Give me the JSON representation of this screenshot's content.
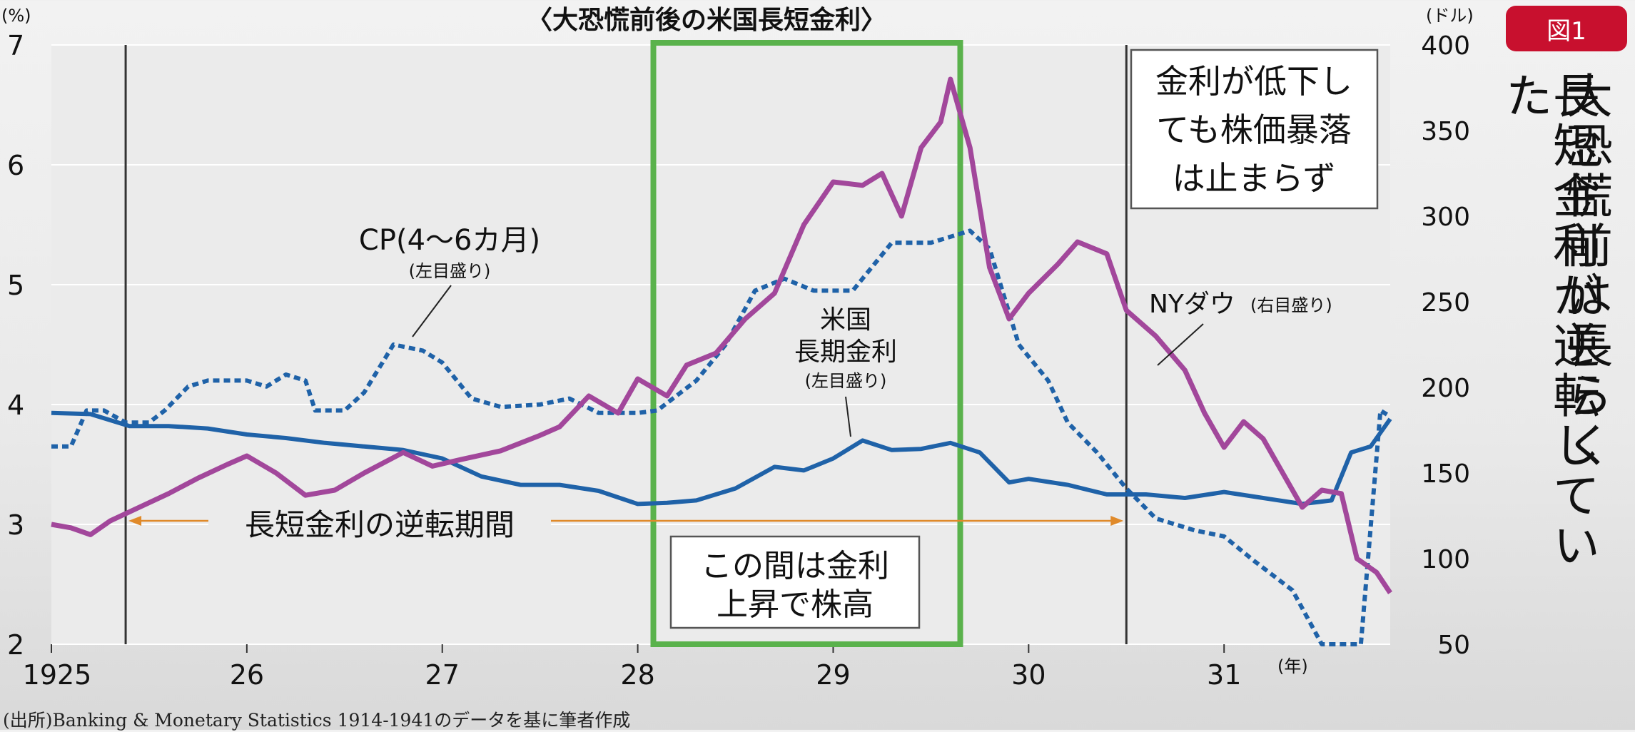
{
  "badge": "図1",
  "side_title": [
    "大恐慌前は長らく",
    "長短金利が逆転していた"
  ],
  "source": "(出所)Banking & Monetary Statistics 1914-1941のデータを基に筆者作成",
  "chart_data": {
    "type": "line",
    "title": "〈大恐慌前後の米国長短金利〉",
    "left_axis_unit": "(%)",
    "right_axis_unit": "(ドル)",
    "x_unit": "(年)",
    "x_tick_labels": [
      "1925",
      "26",
      "27",
      "28",
      "29",
      "30",
      "31"
    ],
    "x_ticks": [
      1925,
      1926,
      1927,
      1928,
      1929,
      1930,
      1931
    ],
    "xlim": [
      1925,
      1931.85
    ],
    "ylim_left": [
      2,
      7
    ],
    "ylim_right": [
      50,
      400
    ],
    "y_ticks_left": [
      "2",
      "3",
      "4",
      "5",
      "6",
      "7"
    ],
    "y_ticks_right": [
      "50",
      "100",
      "150",
      "200",
      "250",
      "300",
      "350",
      "400"
    ],
    "series": [
      {
        "name": "CP(4〜6カ月)",
        "axis": "left",
        "style": "dotted",
        "color": "#1f62a8",
        "points": [
          [
            1925.0,
            3.65
          ],
          [
            1925.1,
            3.65
          ],
          [
            1925.18,
            3.95
          ],
          [
            1925.27,
            3.95
          ],
          [
            1925.38,
            3.85
          ],
          [
            1925.5,
            3.85
          ],
          [
            1925.58,
            3.95
          ],
          [
            1925.7,
            4.15
          ],
          [
            1925.8,
            4.2
          ],
          [
            1926.0,
            4.2
          ],
          [
            1926.1,
            4.15
          ],
          [
            1926.2,
            4.25
          ],
          [
            1926.3,
            4.2
          ],
          [
            1926.35,
            3.95
          ],
          [
            1926.5,
            3.95
          ],
          [
            1926.6,
            4.1
          ],
          [
            1926.75,
            4.5
          ],
          [
            1926.9,
            4.45
          ],
          [
            1927.0,
            4.35
          ],
          [
            1927.15,
            4.05
          ],
          [
            1927.3,
            3.98
          ],
          [
            1927.5,
            4.0
          ],
          [
            1927.65,
            4.05
          ],
          [
            1927.8,
            3.93
          ],
          [
            1928.0,
            3.93
          ],
          [
            1928.1,
            3.95
          ],
          [
            1928.3,
            4.2
          ],
          [
            1928.45,
            4.5
          ],
          [
            1928.6,
            4.95
          ],
          [
            1928.75,
            5.05
          ],
          [
            1928.9,
            4.95
          ],
          [
            1929.1,
            4.95
          ],
          [
            1929.3,
            5.35
          ],
          [
            1929.5,
            5.35
          ],
          [
            1929.7,
            5.45
          ],
          [
            1929.8,
            5.3
          ],
          [
            1929.95,
            4.5
          ],
          [
            1930.1,
            4.2
          ],
          [
            1930.2,
            3.85
          ],
          [
            1930.35,
            3.6
          ],
          [
            1930.5,
            3.3
          ],
          [
            1930.65,
            3.05
          ],
          [
            1930.85,
            2.95
          ],
          [
            1931.0,
            2.9
          ],
          [
            1931.15,
            2.7
          ],
          [
            1931.35,
            2.45
          ],
          [
            1931.5,
            2.0
          ],
          [
            1931.7,
            2.0
          ],
          [
            1931.8,
            3.95
          ],
          [
            1931.85,
            3.9
          ]
        ]
      },
      {
        "name": "米国長期金利",
        "axis": "left",
        "style": "solid",
        "color": "#1f62a8",
        "points": [
          [
            1925.0,
            3.93
          ],
          [
            1925.2,
            3.92
          ],
          [
            1925.4,
            3.82
          ],
          [
            1925.6,
            3.82
          ],
          [
            1925.8,
            3.8
          ],
          [
            1926.0,
            3.75
          ],
          [
            1926.2,
            3.72
          ],
          [
            1926.4,
            3.68
          ],
          [
            1926.6,
            3.65
          ],
          [
            1926.8,
            3.62
          ],
          [
            1927.0,
            3.55
          ],
          [
            1927.2,
            3.4
          ],
          [
            1927.4,
            3.33
          ],
          [
            1927.6,
            3.33
          ],
          [
            1927.8,
            3.28
          ],
          [
            1928.0,
            3.17
          ],
          [
            1928.15,
            3.18
          ],
          [
            1928.3,
            3.2
          ],
          [
            1928.5,
            3.3
          ],
          [
            1928.7,
            3.48
          ],
          [
            1928.85,
            3.45
          ],
          [
            1929.0,
            3.55
          ],
          [
            1929.15,
            3.7
          ],
          [
            1929.3,
            3.62
          ],
          [
            1929.45,
            3.63
          ],
          [
            1929.6,
            3.68
          ],
          [
            1929.75,
            3.6
          ],
          [
            1929.9,
            3.35
          ],
          [
            1930.0,
            3.38
          ],
          [
            1930.2,
            3.33
          ],
          [
            1930.4,
            3.25
          ],
          [
            1930.6,
            3.25
          ],
          [
            1930.8,
            3.22
          ],
          [
            1931.0,
            3.27
          ],
          [
            1931.2,
            3.22
          ],
          [
            1931.4,
            3.17
          ],
          [
            1931.55,
            3.2
          ],
          [
            1931.65,
            3.6
          ],
          [
            1931.75,
            3.65
          ],
          [
            1931.85,
            3.88
          ]
        ]
      },
      {
        "name": "NYダウ",
        "axis": "right",
        "style": "solid",
        "color": "#a2479b",
        "points": [
          [
            1925.0,
            120
          ],
          [
            1925.1,
            118
          ],
          [
            1925.2,
            114
          ],
          [
            1925.3,
            122
          ],
          [
            1925.45,
            130
          ],
          [
            1925.6,
            138
          ],
          [
            1925.75,
            147
          ],
          [
            1925.9,
            155
          ],
          [
            1926.0,
            160
          ],
          [
            1926.15,
            150
          ],
          [
            1926.3,
            137
          ],
          [
            1926.45,
            140
          ],
          [
            1926.6,
            150
          ],
          [
            1926.8,
            162
          ],
          [
            1926.95,
            154
          ],
          [
            1927.1,
            158
          ],
          [
            1927.3,
            163
          ],
          [
            1927.5,
            172
          ],
          [
            1927.6,
            177
          ],
          [
            1927.75,
            195
          ],
          [
            1927.9,
            185
          ],
          [
            1928.0,
            205
          ],
          [
            1928.15,
            195
          ],
          [
            1928.25,
            213
          ],
          [
            1928.4,
            220
          ],
          [
            1928.55,
            240
          ],
          [
            1928.7,
            255
          ],
          [
            1928.85,
            295
          ],
          [
            1929.0,
            320
          ],
          [
            1929.15,
            318
          ],
          [
            1929.25,
            325
          ],
          [
            1929.35,
            300
          ],
          [
            1929.45,
            340
          ],
          [
            1929.55,
            355
          ],
          [
            1929.6,
            380
          ],
          [
            1929.7,
            340
          ],
          [
            1929.8,
            270
          ],
          [
            1929.9,
            240
          ],
          [
            1930.0,
            255
          ],
          [
            1930.15,
            272
          ],
          [
            1930.25,
            285
          ],
          [
            1930.4,
            278
          ],
          [
            1930.5,
            245
          ],
          [
            1930.65,
            230
          ],
          [
            1930.8,
            210
          ],
          [
            1930.9,
            185
          ],
          [
            1931.0,
            165
          ],
          [
            1931.1,
            180
          ],
          [
            1931.2,
            170
          ],
          [
            1931.3,
            150
          ],
          [
            1931.4,
            130
          ],
          [
            1931.5,
            140
          ],
          [
            1931.6,
            138
          ],
          [
            1931.68,
            100
          ],
          [
            1931.78,
            92
          ],
          [
            1931.85,
            80
          ]
        ]
      }
    ],
    "annotations": {
      "cp_label": "CP(4〜6カ月)",
      "cp_sub": "(左目盛り)",
      "long_label_1": "米国",
      "long_label_2": "長期金利",
      "long_sub": "(左目盛り)",
      "dow_label": "NYダウ",
      "dow_sub": "(右目盛り)",
      "inversion_label": "長短金利の逆転期間",
      "green_box": [
        "この間は金利",
        "上昇で株高"
      ],
      "crash_note": [
        "金利が低下し",
        "ても株価暴落",
        "は止まらず"
      ]
    },
    "inversion_period": [
      1925.38,
      1930.5
    ],
    "highlight_period": [
      1928.08,
      1929.65
    ]
  }
}
